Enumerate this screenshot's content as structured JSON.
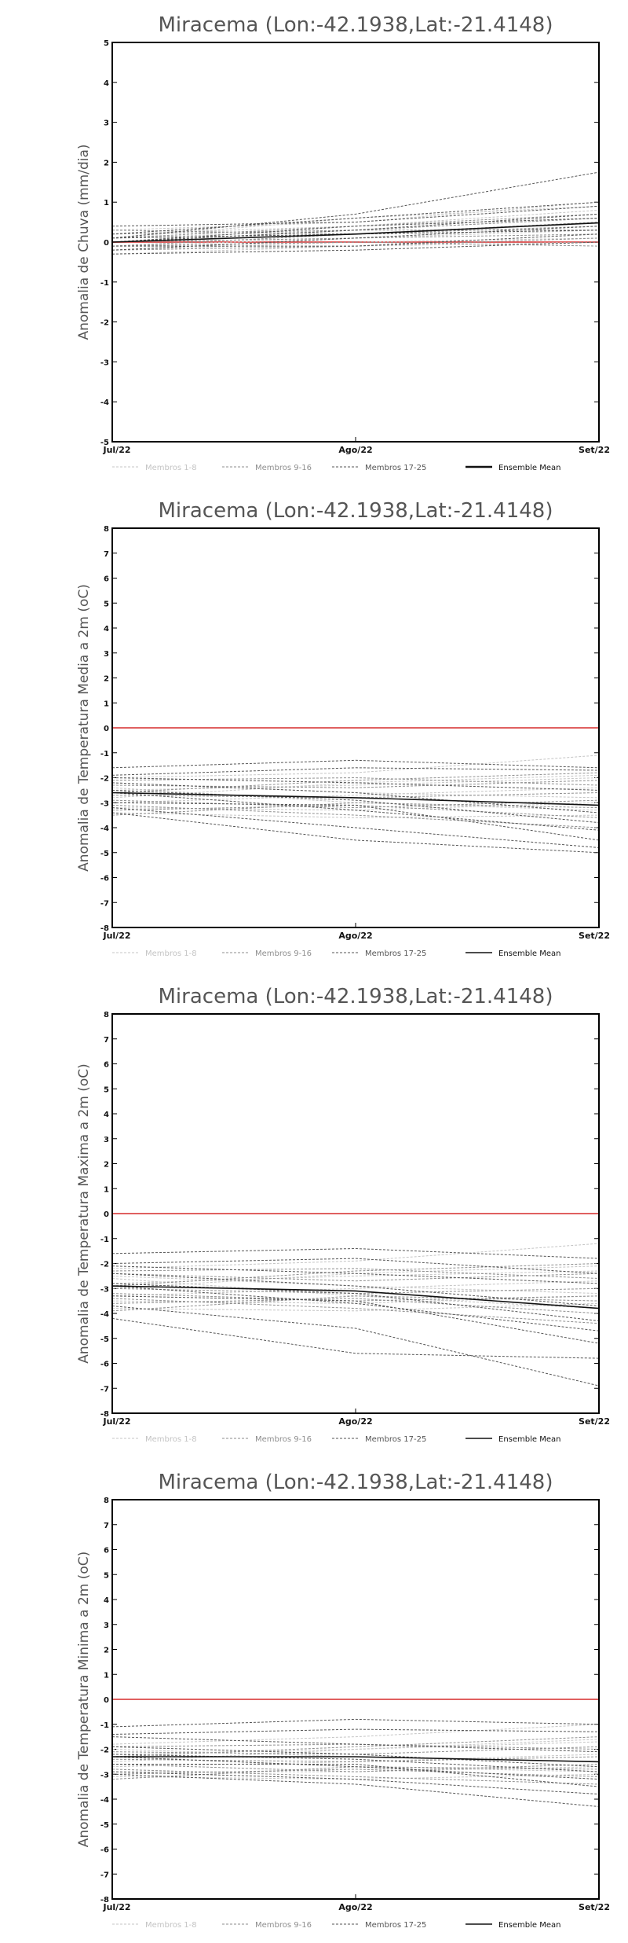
{
  "chart_data": [
    {
      "type": "line",
      "title": "Miracema (Lon:-42.1938,Lat:-21.4148)",
      "ylabel": "Anomalia de Chuva (mm/dia)",
      "xlabel": "",
      "x": [
        "Jul/22",
        "Ago/22",
        "Set/22"
      ],
      "ylim": [
        -5,
        5
      ],
      "yticks": [
        -5,
        -4,
        -3,
        -2,
        -1,
        0,
        1,
        2,
        3,
        4,
        5
      ],
      "reference_line": {
        "y": 0,
        "color": "#e06060"
      },
      "legend": [
        {
          "label": "Membros 1-8",
          "style": "light-gray-dashed"
        },
        {
          "label": "Membros 9-16",
          "style": "gray-dashed"
        },
        {
          "label": "Membros 17-25",
          "style": "dark-gray-dashed"
        },
        {
          "label": "Ensemble Mean",
          "style": "black-solid-thick"
        }
      ],
      "series": [
        {
          "group": "Membros 1-8",
          "values": [
            0.2,
            0.4,
            0.8
          ]
        },
        {
          "group": "Membros 1-8",
          "values": [
            0.1,
            0.3,
            0.6
          ]
        },
        {
          "group": "Membros 1-8",
          "values": [
            -0.1,
            0.1,
            0.3
          ]
        },
        {
          "group": "Membros 1-8",
          "values": [
            0.0,
            0.2,
            0.5
          ]
        },
        {
          "group": "Membros 1-8",
          "values": [
            -0.2,
            0.0,
            0.1
          ]
        },
        {
          "group": "Membros 1-8",
          "values": [
            0.3,
            0.5,
            1.0
          ]
        },
        {
          "group": "Membros 1-8",
          "values": [
            -0.3,
            -0.1,
            0.0
          ]
        },
        {
          "group": "Membros 1-8",
          "values": [
            0.1,
            0.6,
            0.9
          ]
        },
        {
          "group": "Membros 9-16",
          "values": [
            0.2,
            0.3,
            0.6
          ]
        },
        {
          "group": "Membros 9-16",
          "values": [
            -0.1,
            0.2,
            0.4
          ]
        },
        {
          "group": "Membros 9-16",
          "values": [
            0.0,
            0.1,
            0.2
          ]
        },
        {
          "group": "Membros 9-16",
          "values": [
            0.1,
            0.4,
            0.7
          ]
        },
        {
          "group": "Membros 9-16",
          "values": [
            -0.2,
            -0.1,
            0.1
          ]
        },
        {
          "group": "Membros 9-16",
          "values": [
            0.3,
            0.2,
            0.5
          ]
        },
        {
          "group": "Membros 9-16",
          "values": [
            0.0,
            0.3,
            0.3
          ]
        },
        {
          "group": "Membros 9-16",
          "values": [
            -0.1,
            0.0,
            -0.1
          ]
        },
        {
          "group": "Membros 17-25",
          "values": [
            0.1,
            0.7,
            1.75
          ]
        },
        {
          "group": "Membros 17-25",
          "values": [
            0.2,
            0.6,
            1.0
          ]
        },
        {
          "group": "Membros 17-25",
          "values": [
            -0.3,
            -0.2,
            0.0
          ]
        },
        {
          "group": "Membros 17-25",
          "values": [
            0.0,
            0.3,
            0.7
          ]
        },
        {
          "group": "Membros 17-25",
          "values": [
            -0.1,
            -0.1,
            0.2
          ]
        },
        {
          "group": "Membros 17-25",
          "values": [
            0.4,
            0.5,
            0.9
          ]
        },
        {
          "group": "Membros 17-25",
          "values": [
            -0.2,
            0.1,
            0.4
          ]
        },
        {
          "group": "Membros 17-25",
          "values": [
            0.1,
            0.2,
            0.3
          ]
        },
        {
          "group": "Membros 17-25",
          "values": [
            0.0,
            0.4,
            0.6
          ]
        },
        {
          "group": "Ensemble Mean",
          "values": [
            0.0,
            0.2,
            0.48
          ]
        }
      ]
    },
    {
      "type": "line",
      "title": "Miracema (Lon:-42.1938,Lat:-21.4148)",
      "ylabel": "Anomalia de Temperatura Media a 2m (oC)",
      "xlabel": "",
      "x": [
        "Jul/22",
        "Ago/22",
        "Set/22"
      ],
      "ylim": [
        -8,
        8
      ],
      "yticks": [
        -8,
        -7,
        -6,
        -5,
        -4,
        -3,
        -2,
        -1,
        0,
        1,
        2,
        3,
        4,
        5,
        6,
        7,
        8
      ],
      "reference_line": {
        "y": 0,
        "color": "#e06060"
      },
      "legend": [
        {
          "label": "Membros 1-8",
          "style": "light-gray-dashed"
        },
        {
          "label": "Membros 9-16",
          "style": "gray-dashed"
        },
        {
          "label": "Membros 17-25",
          "style": "dark-gray-dashed"
        },
        {
          "label": "Ensemble Mean",
          "style": "black-solid"
        }
      ],
      "series": [
        {
          "group": "Membros 1-8",
          "values": [
            -2.0,
            -1.8,
            -1.1
          ]
        },
        {
          "group": "Membros 1-8",
          "values": [
            -2.5,
            -2.3,
            -2.0
          ]
        },
        {
          "group": "Membros 1-8",
          "values": [
            -3.0,
            -2.7,
            -2.4
          ]
        },
        {
          "group": "Membros 1-8",
          "values": [
            -3.4,
            -3.6,
            -3.5
          ]
        },
        {
          "group": "Membros 1-8",
          "values": [
            -2.2,
            -2.6,
            -2.8
          ]
        },
        {
          "group": "Membros 1-8",
          "values": [
            -3.2,
            -3.3,
            -3.0
          ]
        },
        {
          "group": "Membros 1-8",
          "values": [
            -2.8,
            -2.2,
            -1.9
          ]
        },
        {
          "group": "Membros 1-8",
          "values": [
            -2.4,
            -3.0,
            -3.3
          ]
        },
        {
          "group": "Membros 9-16",
          "values": [
            -2.1,
            -2.0,
            -2.3
          ]
        },
        {
          "group": "Membros 9-16",
          "values": [
            -2.7,
            -2.8,
            -2.6
          ]
        },
        {
          "group": "Membros 9-16",
          "values": [
            -3.3,
            -3.1,
            -3.6
          ]
        },
        {
          "group": "Membros 9-16",
          "values": [
            -2.3,
            -2.4,
            -2.1
          ]
        },
        {
          "group": "Membros 9-16",
          "values": [
            -3.1,
            -3.5,
            -4.0
          ]
        },
        {
          "group": "Membros 9-16",
          "values": [
            -2.6,
            -2.1,
            -1.8
          ]
        },
        {
          "group": "Membros 9-16",
          "values": [
            -2.9,
            -3.2,
            -2.9
          ]
        },
        {
          "group": "Membros 9-16",
          "values": [
            -3.5,
            -3.0,
            -3.2
          ]
        },
        {
          "group": "Membros 17-25",
          "values": [
            -1.6,
            -1.3,
            -1.6
          ]
        },
        {
          "group": "Membros 17-25",
          "values": [
            -2.0,
            -2.2,
            -2.5
          ]
        },
        {
          "group": "Membros 17-25",
          "values": [
            -3.4,
            -4.5,
            -5.0
          ]
        },
        {
          "group": "Membros 17-25",
          "values": [
            -3.2,
            -4.0,
            -4.8
          ]
        },
        {
          "group": "Membros 17-25",
          "values": [
            -2.6,
            -3.3,
            -4.1
          ]
        },
        {
          "group": "Membros 17-25",
          "values": [
            -2.2,
            -2.6,
            -3.4
          ]
        },
        {
          "group": "Membros 17-25",
          "values": [
            -3.0,
            -3.1,
            -4.5
          ]
        },
        {
          "group": "Membros 17-25",
          "values": [
            -2.5,
            -2.9,
            -3.8
          ]
        },
        {
          "group": "Membros 17-25",
          "values": [
            -1.9,
            -1.6,
            -1.7
          ]
        },
        {
          "group": "Ensemble Mean",
          "values": [
            -2.6,
            -2.8,
            -3.1
          ]
        }
      ]
    },
    {
      "type": "line",
      "title": "Miracema (Lon:-42.1938,Lat:-21.4148)",
      "ylabel": "Anomalia de Temperatura Maxima a 2m (oC)",
      "xlabel": "",
      "x": [
        "Jul/22",
        "Ago/22",
        "Set/22"
      ],
      "ylim": [
        -8,
        8
      ],
      "yticks": [
        -8,
        -7,
        -6,
        -5,
        -4,
        -3,
        -2,
        -1,
        0,
        1,
        2,
        3,
        4,
        5,
        6,
        7,
        8
      ],
      "reference_line": {
        "y": 0,
        "color": "#e06060"
      },
      "legend": [
        {
          "label": "Membros 1-8",
          "style": "light-gray-dashed"
        },
        {
          "label": "Membros 9-16",
          "style": "gray-dashed"
        },
        {
          "label": "Membros 17-25",
          "style": "dark-gray-dashed"
        },
        {
          "label": "Ensemble Mean",
          "style": "black-solid"
        }
      ],
      "series": [
        {
          "group": "Membros 1-8",
          "values": [
            -2.2,
            -1.9,
            -1.2
          ]
        },
        {
          "group": "Membros 1-8",
          "values": [
            -2.8,
            -2.5,
            -2.3
          ]
        },
        {
          "group": "Membros 1-8",
          "values": [
            -3.3,
            -3.0,
            -2.7
          ]
        },
        {
          "group": "Membros 1-8",
          "values": [
            -3.8,
            -3.9,
            -3.6
          ]
        },
        {
          "group": "Membros 1-8",
          "values": [
            -2.5,
            -2.9,
            -3.2
          ]
        },
        {
          "group": "Membros 1-8",
          "values": [
            -3.5,
            -3.6,
            -3.3
          ]
        },
        {
          "group": "Membros 1-8",
          "values": [
            -3.0,
            -2.4,
            -2.1
          ]
        },
        {
          "group": "Membros 1-8",
          "values": [
            -2.6,
            -3.3,
            -3.8
          ]
        },
        {
          "group": "Membros 9-16",
          "values": [
            -2.3,
            -2.2,
            -2.6
          ]
        },
        {
          "group": "Membros 9-16",
          "values": [
            -3.0,
            -3.2,
            -3.0
          ]
        },
        {
          "group": "Membros 9-16",
          "values": [
            -3.6,
            -3.4,
            -4.0
          ]
        },
        {
          "group": "Membros 9-16",
          "values": [
            -2.4,
            -2.7,
            -2.4
          ]
        },
        {
          "group": "Membros 9-16",
          "values": [
            -3.4,
            -3.8,
            -4.4
          ]
        },
        {
          "group": "Membros 9-16",
          "values": [
            -2.9,
            -2.3,
            -2.0
          ]
        },
        {
          "group": "Membros 9-16",
          "values": [
            -3.2,
            -3.5,
            -3.3
          ]
        },
        {
          "group": "Membros 9-16",
          "values": [
            -3.9,
            -3.3,
            -3.5
          ]
        },
        {
          "group": "Membros 17-25",
          "values": [
            -1.6,
            -1.4,
            -1.8
          ]
        },
        {
          "group": "Membros 17-25",
          "values": [
            -2.1,
            -2.4,
            -2.8
          ]
        },
        {
          "group": "Membros 17-25",
          "values": [
            -4.2,
            -5.6,
            -5.8
          ]
        },
        {
          "group": "Membros 17-25",
          "values": [
            -3.7,
            -4.6,
            -6.9
          ]
        },
        {
          "group": "Membros 17-25",
          "values": [
            -2.9,
            -3.6,
            -4.7
          ]
        },
        {
          "group": "Membros 17-25",
          "values": [
            -2.4,
            -2.9,
            -3.7
          ]
        },
        {
          "group": "Membros 17-25",
          "values": [
            -3.3,
            -3.5,
            -5.2
          ]
        },
        {
          "group": "Membros 17-25",
          "values": [
            -2.8,
            -3.2,
            -4.3
          ]
        },
        {
          "group": "Membros 17-25",
          "values": [
            -2.0,
            -1.8,
            -2.4
          ]
        },
        {
          "group": "Ensemble Mean",
          "values": [
            -2.9,
            -3.1,
            -3.8
          ]
        }
      ]
    },
    {
      "type": "line",
      "title": "Miracema (Lon:-42.1938,Lat:-21.4148)",
      "ylabel": "Anomalia de Temperatura Minima a 2m (oC)",
      "xlabel": "",
      "x": [
        "Jul/22",
        "Ago/22",
        "Set/22"
      ],
      "ylim": [
        -8,
        8
      ],
      "yticks": [
        -8,
        -7,
        -6,
        -5,
        -4,
        -3,
        -2,
        -1,
        0,
        1,
        2,
        3,
        4,
        5,
        6,
        7,
        8
      ],
      "reference_line": {
        "y": 0,
        "color": "#e06060"
      },
      "legend": [
        {
          "label": "Membros 1-8",
          "style": "light-gray-dashed"
        },
        {
          "label": "Membros 9-16",
          "style": "gray-dashed"
        },
        {
          "label": "Membros 17-25",
          "style": "dark-gray-dashed"
        },
        {
          "label": "Ensemble Mean",
          "style": "black-solid"
        }
      ],
      "series": [
        {
          "group": "Membros 1-8",
          "values": [
            -1.8,
            -1.5,
            -1.0
          ]
        },
        {
          "group": "Membros 1-8",
          "values": [
            -2.2,
            -2.0,
            -1.7
          ]
        },
        {
          "group": "Membros 1-8",
          "values": [
            -2.7,
            -2.5,
            -2.2
          ]
        },
        {
          "group": "Membros 1-8",
          "values": [
            -3.1,
            -3.2,
            -3.0
          ]
        },
        {
          "group": "Membros 1-8",
          "values": [
            -2.0,
            -2.3,
            -2.5
          ]
        },
        {
          "group": "Membros 1-8",
          "values": [
            -2.9,
            -2.9,
            -2.7
          ]
        },
        {
          "group": "Membros 1-8",
          "values": [
            -2.5,
            -2.0,
            -1.6
          ]
        },
        {
          "group": "Membros 1-8",
          "values": [
            -2.3,
            -2.7,
            -2.9
          ]
        },
        {
          "group": "Membros 9-16",
          "values": [
            -1.9,
            -1.8,
            -2.0
          ]
        },
        {
          "group": "Membros 9-16",
          "values": [
            -2.4,
            -2.5,
            -2.3
          ]
        },
        {
          "group": "Membros 9-16",
          "values": [
            -3.0,
            -2.8,
            -3.1
          ]
        },
        {
          "group": "Membros 9-16",
          "values": [
            -2.1,
            -2.2,
            -1.9
          ]
        },
        {
          "group": "Membros 9-16",
          "values": [
            -2.8,
            -3.1,
            -3.4
          ]
        },
        {
          "group": "Membros 9-16",
          "values": [
            -2.3,
            -1.9,
            -1.5
          ]
        },
        {
          "group": "Membros 9-16",
          "values": [
            -2.6,
            -2.9,
            -2.6
          ]
        },
        {
          "group": "Membros 9-16",
          "values": [
            -3.2,
            -2.7,
            -2.8
          ]
        },
        {
          "group": "Membros 17-25",
          "values": [
            -1.1,
            -0.8,
            -1.0
          ]
        },
        {
          "group": "Membros 17-25",
          "values": [
            -1.5,
            -1.8,
            -2.1
          ]
        },
        {
          "group": "Membros 17-25",
          "values": [
            -3.0,
            -3.4,
            -4.3
          ]
        },
        {
          "group": "Membros 17-25",
          "values": [
            -2.9,
            -3.2,
            -3.8
          ]
        },
        {
          "group": "Membros 17-25",
          "values": [
            -2.3,
            -2.7,
            -3.2
          ]
        },
        {
          "group": "Membros 17-25",
          "values": [
            -1.9,
            -2.2,
            -2.7
          ]
        },
        {
          "group": "Membros 17-25",
          "values": [
            -2.6,
            -2.6,
            -3.5
          ]
        },
        {
          "group": "Membros 17-25",
          "values": [
            -2.2,
            -2.4,
            -2.9
          ]
        },
        {
          "group": "Membros 17-25",
          "values": [
            -1.4,
            -1.2,
            -1.3
          ]
        },
        {
          "group": "Ensemble Mean",
          "values": [
            -2.3,
            -2.3,
            -2.5
          ]
        }
      ]
    }
  ]
}
